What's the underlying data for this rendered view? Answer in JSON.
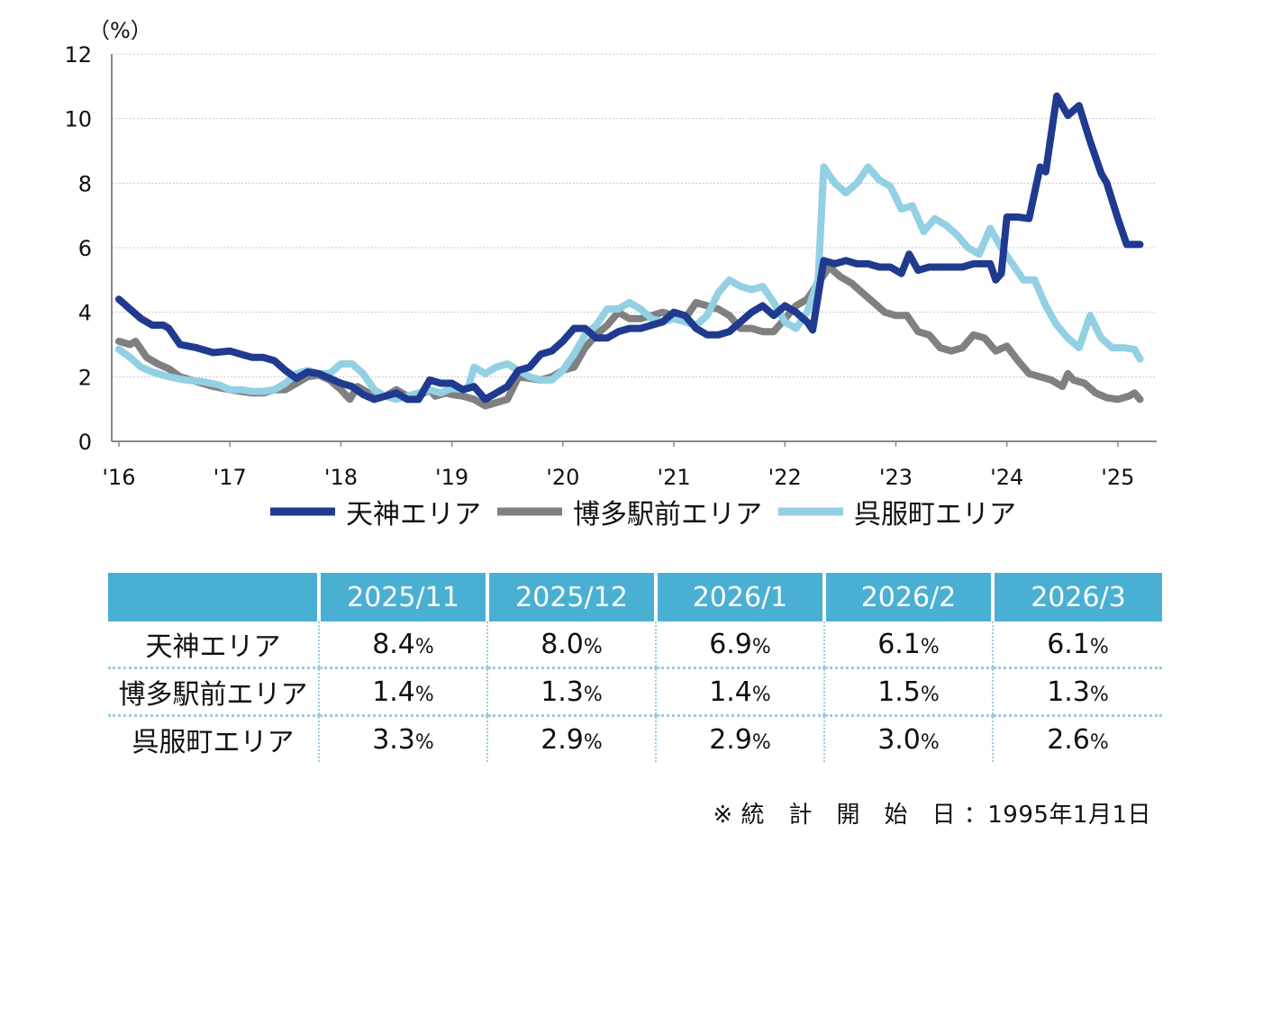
{
  "chart_data": {
    "type": "line",
    "ylabel": "（%）",
    "ylim": [
      0,
      12
    ],
    "y_ticks": [
      "0",
      "2",
      "4",
      "6",
      "8",
      "10",
      "12"
    ],
    "x_ticks": [
      "'16",
      "'17",
      "'18",
      "'19",
      "'20",
      "'21",
      "'22",
      "'23",
      "'24",
      "'25"
    ],
    "x_range": [
      2016.0,
      2025.35
    ],
    "grid": "horizontal dotted",
    "legend_position": "bottom",
    "series": [
      {
        "name": "天神エリア",
        "color": "#1f3a8f",
        "points": [
          [
            2016.0,
            4.4
          ],
          [
            2016.1,
            4.1
          ],
          [
            2016.2,
            3.8
          ],
          [
            2016.3,
            3.6
          ],
          [
            2016.4,
            3.6
          ],
          [
            2016.45,
            3.5
          ],
          [
            2016.55,
            3.0
          ],
          [
            2016.7,
            2.9
          ],
          [
            2016.85,
            2.75
          ],
          [
            2017.0,
            2.8
          ],
          [
            2017.1,
            2.7
          ],
          [
            2017.2,
            2.6
          ],
          [
            2017.3,
            2.6
          ],
          [
            2017.4,
            2.5
          ],
          [
            2017.5,
            2.2
          ],
          [
            2017.6,
            1.95
          ],
          [
            2017.7,
            2.15
          ],
          [
            2017.8,
            2.1
          ],
          [
            2017.9,
            1.95
          ],
          [
            2018.0,
            1.8
          ],
          [
            2018.1,
            1.7
          ],
          [
            2018.2,
            1.45
          ],
          [
            2018.3,
            1.3
          ],
          [
            2018.4,
            1.4
          ],
          [
            2018.5,
            1.5
          ],
          [
            2018.6,
            1.3
          ],
          [
            2018.7,
            1.3
          ],
          [
            2018.8,
            1.9
          ],
          [
            2018.9,
            1.8
          ],
          [
            2019.0,
            1.8
          ],
          [
            2019.1,
            1.6
          ],
          [
            2019.2,
            1.7
          ],
          [
            2019.3,
            1.3
          ],
          [
            2019.4,
            1.5
          ],
          [
            2019.5,
            1.7
          ],
          [
            2019.6,
            2.2
          ],
          [
            2019.7,
            2.3
          ],
          [
            2019.8,
            2.7
          ],
          [
            2019.9,
            2.8
          ],
          [
            2020.0,
            3.1
          ],
          [
            2020.1,
            3.5
          ],
          [
            2020.2,
            3.5
          ],
          [
            2020.3,
            3.2
          ],
          [
            2020.4,
            3.2
          ],
          [
            2020.5,
            3.4
          ],
          [
            2020.6,
            3.5
          ],
          [
            2020.7,
            3.5
          ],
          [
            2020.8,
            3.6
          ],
          [
            2020.9,
            3.7
          ],
          [
            2021.0,
            4.0
          ],
          [
            2021.1,
            3.9
          ],
          [
            2021.2,
            3.5
          ],
          [
            2021.3,
            3.3
          ],
          [
            2021.4,
            3.3
          ],
          [
            2021.5,
            3.4
          ],
          [
            2021.6,
            3.7
          ],
          [
            2021.7,
            4.0
          ],
          [
            2021.8,
            4.2
          ],
          [
            2021.9,
            3.9
          ],
          [
            2022.0,
            4.2
          ],
          [
            2022.1,
            4.0
          ],
          [
            2022.2,
            3.7
          ],
          [
            2022.25,
            3.45
          ],
          [
            2022.35,
            5.6
          ],
          [
            2022.45,
            5.5
          ],
          [
            2022.55,
            5.6
          ],
          [
            2022.65,
            5.5
          ],
          [
            2022.75,
            5.5
          ],
          [
            2022.85,
            5.4
          ],
          [
            2022.95,
            5.4
          ],
          [
            2023.0,
            5.3
          ],
          [
            2023.05,
            5.2
          ],
          [
            2023.12,
            5.8
          ],
          [
            2023.2,
            5.3
          ],
          [
            2023.3,
            5.4
          ],
          [
            2023.4,
            5.4
          ],
          [
            2023.5,
            5.4
          ],
          [
            2023.6,
            5.4
          ],
          [
            2023.7,
            5.5
          ],
          [
            2023.8,
            5.5
          ],
          [
            2023.85,
            5.5
          ],
          [
            2023.9,
            5.0
          ],
          [
            2023.95,
            5.2
          ],
          [
            2024.0,
            6.95
          ],
          [
            2024.1,
            6.95
          ],
          [
            2024.2,
            6.9
          ],
          [
            2024.3,
            8.5
          ],
          [
            2024.35,
            8.35
          ],
          [
            2024.45,
            10.7
          ],
          [
            2024.55,
            10.1
          ],
          [
            2024.65,
            10.4
          ],
          [
            2024.75,
            9.3
          ],
          [
            2024.85,
            8.3
          ],
          [
            2024.9,
            8.0
          ],
          [
            2025.0,
            6.9
          ],
          [
            2025.08,
            6.1
          ],
          [
            2025.2,
            6.1
          ]
        ]
      },
      {
        "name": "博多駅前エリア",
        "color": "#808080",
        "points": [
          [
            2016.0,
            3.1
          ],
          [
            2016.1,
            3.0
          ],
          [
            2016.15,
            3.1
          ],
          [
            2016.25,
            2.6
          ],
          [
            2016.35,
            2.4
          ],
          [
            2016.45,
            2.25
          ],
          [
            2016.55,
            2.0
          ],
          [
            2016.7,
            1.85
          ],
          [
            2016.85,
            1.7
          ],
          [
            2017.0,
            1.6
          ],
          [
            2017.1,
            1.55
          ],
          [
            2017.2,
            1.5
          ],
          [
            2017.3,
            1.5
          ],
          [
            2017.4,
            1.6
          ],
          [
            2017.5,
            1.6
          ],
          [
            2017.6,
            1.8
          ],
          [
            2017.7,
            2.0
          ],
          [
            2017.8,
            2.05
          ],
          [
            2017.9,
            1.9
          ],
          [
            2018.0,
            1.6
          ],
          [
            2018.08,
            1.3
          ],
          [
            2018.15,
            1.7
          ],
          [
            2018.2,
            1.6
          ],
          [
            2018.3,
            1.4
          ],
          [
            2018.4,
            1.4
          ],
          [
            2018.5,
            1.6
          ],
          [
            2018.6,
            1.4
          ],
          [
            2018.7,
            1.4
          ],
          [
            2018.8,
            1.6
          ],
          [
            2018.85,
            1.4
          ],
          [
            2018.95,
            1.5
          ],
          [
            2019.0,
            1.45
          ],
          [
            2019.1,
            1.4
          ],
          [
            2019.2,
            1.3
          ],
          [
            2019.3,
            1.1
          ],
          [
            2019.4,
            1.2
          ],
          [
            2019.5,
            1.3
          ],
          [
            2019.6,
            2.0
          ],
          [
            2019.7,
            1.95
          ],
          [
            2019.8,
            1.9
          ],
          [
            2019.9,
            2.0
          ],
          [
            2020.0,
            2.2
          ],
          [
            2020.1,
            2.3
          ],
          [
            2020.2,
            2.9
          ],
          [
            2020.3,
            3.3
          ],
          [
            2020.4,
            3.6
          ],
          [
            2020.5,
            4.0
          ],
          [
            2020.6,
            3.8
          ],
          [
            2020.7,
            3.8
          ],
          [
            2020.8,
            3.9
          ],
          [
            2020.9,
            4.0
          ],
          [
            2021.0,
            3.9
          ],
          [
            2021.1,
            3.8
          ],
          [
            2021.2,
            4.3
          ],
          [
            2021.3,
            4.2
          ],
          [
            2021.4,
            4.1
          ],
          [
            2021.5,
            3.9
          ],
          [
            2021.6,
            3.5
          ],
          [
            2021.7,
            3.5
          ],
          [
            2021.8,
            3.4
          ],
          [
            2021.9,
            3.4
          ],
          [
            2022.0,
            3.8
          ],
          [
            2022.1,
            4.2
          ],
          [
            2022.2,
            4.4
          ],
          [
            2022.3,
            4.9
          ],
          [
            2022.4,
            5.4
          ],
          [
            2022.5,
            5.1
          ],
          [
            2022.6,
            4.9
          ],
          [
            2022.7,
            4.6
          ],
          [
            2022.8,
            4.3
          ],
          [
            2022.9,
            4.0
          ],
          [
            2023.0,
            3.9
          ],
          [
            2023.1,
            3.9
          ],
          [
            2023.2,
            3.4
          ],
          [
            2023.3,
            3.3
          ],
          [
            2023.4,
            2.9
          ],
          [
            2023.5,
            2.8
          ],
          [
            2023.6,
            2.9
          ],
          [
            2023.7,
            3.3
          ],
          [
            2023.8,
            3.2
          ],
          [
            2023.9,
            2.8
          ],
          [
            2024.0,
            2.95
          ],
          [
            2024.1,
            2.5
          ],
          [
            2024.2,
            2.1
          ],
          [
            2024.3,
            2.0
          ],
          [
            2024.4,
            1.9
          ],
          [
            2024.5,
            1.7
          ],
          [
            2024.55,
            2.1
          ],
          [
            2024.6,
            1.9
          ],
          [
            2024.7,
            1.8
          ],
          [
            2024.8,
            1.5
          ],
          [
            2024.9,
            1.35
          ],
          [
            2025.0,
            1.3
          ],
          [
            2025.1,
            1.4
          ],
          [
            2025.15,
            1.5
          ],
          [
            2025.2,
            1.3
          ]
        ]
      },
      {
        "name": "呉服町エリア",
        "color": "#93d0e4",
        "points": [
          [
            2016.0,
            2.85
          ],
          [
            2016.1,
            2.6
          ],
          [
            2016.2,
            2.3
          ],
          [
            2016.3,
            2.15
          ],
          [
            2016.45,
            2.0
          ],
          [
            2016.6,
            1.9
          ],
          [
            2016.75,
            1.85
          ],
          [
            2016.9,
            1.75
          ],
          [
            2017.0,
            1.6
          ],
          [
            2017.1,
            1.6
          ],
          [
            2017.2,
            1.55
          ],
          [
            2017.3,
            1.55
          ],
          [
            2017.4,
            1.6
          ],
          [
            2017.5,
            1.8
          ],
          [
            2017.6,
            2.1
          ],
          [
            2017.7,
            2.2
          ],
          [
            2017.8,
            2.1
          ],
          [
            2017.9,
            2.1
          ],
          [
            2018.0,
            2.4
          ],
          [
            2018.1,
            2.4
          ],
          [
            2018.2,
            2.1
          ],
          [
            2018.3,
            1.6
          ],
          [
            2018.4,
            1.4
          ],
          [
            2018.5,
            1.3
          ],
          [
            2018.6,
            1.4
          ],
          [
            2018.7,
            1.5
          ],
          [
            2018.8,
            1.6
          ],
          [
            2018.9,
            1.5
          ],
          [
            2019.0,
            1.65
          ],
          [
            2019.1,
            1.6
          ],
          [
            2019.15,
            1.7
          ],
          [
            2019.2,
            2.3
          ],
          [
            2019.3,
            2.1
          ],
          [
            2019.4,
            2.3
          ],
          [
            2019.5,
            2.4
          ],
          [
            2019.6,
            2.2
          ],
          [
            2019.7,
            2.0
          ],
          [
            2019.8,
            1.9
          ],
          [
            2019.9,
            1.9
          ],
          [
            2020.0,
            2.2
          ],
          [
            2020.1,
            2.7
          ],
          [
            2020.2,
            3.3
          ],
          [
            2020.3,
            3.6
          ],
          [
            2020.4,
            4.1
          ],
          [
            2020.5,
            4.1
          ],
          [
            2020.6,
            4.3
          ],
          [
            2020.7,
            4.1
          ],
          [
            2020.8,
            3.8
          ],
          [
            2020.9,
            3.7
          ],
          [
            2021.0,
            3.8
          ],
          [
            2021.1,
            3.7
          ],
          [
            2021.2,
            3.6
          ],
          [
            2021.3,
            3.9
          ],
          [
            2021.4,
            4.6
          ],
          [
            2021.5,
            5.0
          ],
          [
            2021.6,
            4.8
          ],
          [
            2021.7,
            4.7
          ],
          [
            2021.8,
            4.8
          ],
          [
            2021.9,
            4.3
          ],
          [
            2022.0,
            3.7
          ],
          [
            2022.1,
            3.5
          ],
          [
            2022.2,
            4.0
          ],
          [
            2022.3,
            5.0
          ],
          [
            2022.35,
            8.5
          ],
          [
            2022.45,
            8.0
          ],
          [
            2022.55,
            7.7
          ],
          [
            2022.65,
            8.0
          ],
          [
            2022.75,
            8.5
          ],
          [
            2022.85,
            8.1
          ],
          [
            2022.95,
            7.9
          ],
          [
            2023.05,
            7.2
          ],
          [
            2023.15,
            7.3
          ],
          [
            2023.25,
            6.5
          ],
          [
            2023.35,
            6.9
          ],
          [
            2023.45,
            6.7
          ],
          [
            2023.55,
            6.4
          ],
          [
            2023.65,
            6.0
          ],
          [
            2023.75,
            5.8
          ],
          [
            2023.85,
            6.6
          ],
          [
            2023.95,
            6.0
          ],
          [
            2024.05,
            5.5
          ],
          [
            2024.15,
            5.0
          ],
          [
            2024.25,
            5.0
          ],
          [
            2024.35,
            4.2
          ],
          [
            2024.45,
            3.6
          ],
          [
            2024.55,
            3.2
          ],
          [
            2024.65,
            2.9
          ],
          [
            2024.75,
            3.9
          ],
          [
            2024.85,
            3.2
          ],
          [
            2024.95,
            2.9
          ],
          [
            2025.05,
            2.9
          ],
          [
            2025.15,
            2.85
          ],
          [
            2025.2,
            2.55
          ]
        ]
      }
    ]
  },
  "table": {
    "headers": [
      "",
      "2025/11",
      "2025/12",
      "2026/1",
      "2026/2",
      "2026/3"
    ],
    "header_color": "#4ab0d3",
    "rows": [
      {
        "label": "天神エリア",
        "values": [
          "8.4",
          "8.0",
          "6.9",
          "6.1",
          "6.1"
        ]
      },
      {
        "label": "博多駅前エリア",
        "values": [
          "1.4",
          "1.3",
          "1.4",
          "1.5",
          "1.3"
        ]
      },
      {
        "label": "呉服町エリア",
        "values": [
          "3.3",
          "2.9",
          "2.9",
          "3.0",
          "2.6"
        ]
      }
    ],
    "unit": "%"
  },
  "footnote": "※ 統　計　開　始　日 ：1995年1月1日"
}
